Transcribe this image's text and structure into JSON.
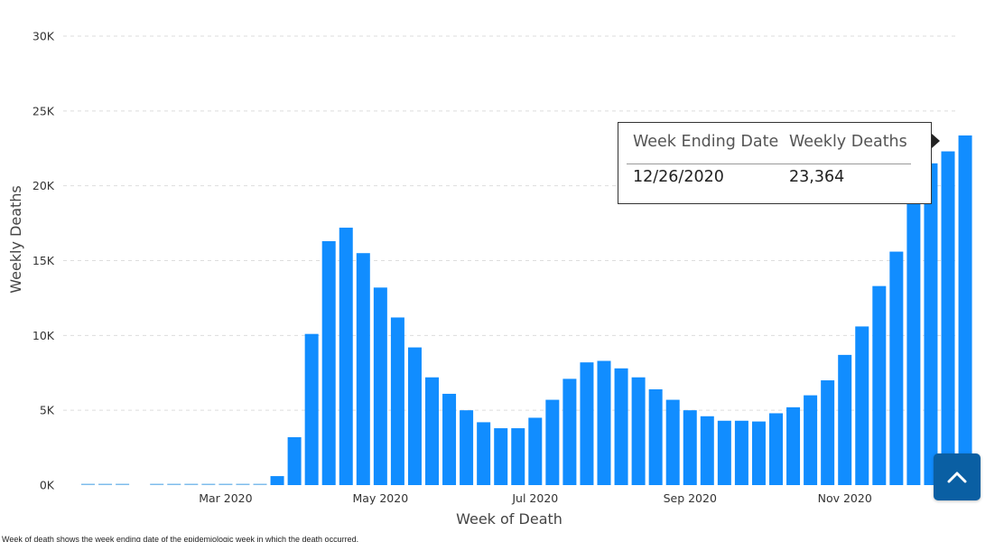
{
  "chart_data": {
    "type": "bar",
    "xlabel": "Week of Death",
    "ylabel": "Weekly Deaths",
    "ylim": [
      0,
      30000
    ],
    "yticks": [
      "0K",
      "5K",
      "10K",
      "15K",
      "20K",
      "25K",
      "30K"
    ],
    "ytick_values": [
      0,
      5000,
      10000,
      15000,
      20000,
      25000,
      30000
    ],
    "xtick_labels": [
      {
        "label": "Mar 2020",
        "date": "2020-02-29"
      },
      {
        "label": "May 2020",
        "date": "2020-05-02"
      },
      {
        "label": "Jul 2020",
        "date": "2020-07-04"
      },
      {
        "label": "Sep 2020",
        "date": "2020-09-05"
      },
      {
        "label": "Nov 2020",
        "date": "2020-11-07"
      }
    ],
    "grid": true,
    "bar_color": "#118dff",
    "x": [
      "2020-01-04",
      "2020-01-11",
      "2020-01-18",
      "2020-01-25",
      "2020-02-01",
      "2020-02-08",
      "2020-02-15",
      "2020-02-22",
      "2020-02-29",
      "2020-03-07",
      "2020-03-14",
      "2020-03-21",
      "2020-03-28",
      "2020-04-04",
      "2020-04-11",
      "2020-04-18",
      "2020-04-25",
      "2020-05-02",
      "2020-05-09",
      "2020-05-16",
      "2020-05-23",
      "2020-05-30",
      "2020-06-06",
      "2020-06-13",
      "2020-06-20",
      "2020-06-27",
      "2020-07-04",
      "2020-07-11",
      "2020-07-18",
      "2020-07-25",
      "2020-08-01",
      "2020-08-08",
      "2020-08-15",
      "2020-08-22",
      "2020-08-29",
      "2020-09-05",
      "2020-09-12",
      "2020-09-19",
      "2020-09-26",
      "2020-10-03",
      "2020-10-10",
      "2020-10-17",
      "2020-10-24",
      "2020-10-31",
      "2020-11-07",
      "2020-11-14",
      "2020-11-21",
      "2020-11-28",
      "2020-12-05",
      "2020-12-12",
      "2020-12-19",
      "2020-12-26"
    ],
    "values": [
      20,
      20,
      20,
      0,
      20,
      20,
      20,
      20,
      20,
      20,
      20,
      600,
      3200,
      10100,
      16300,
      17200,
      15500,
      13200,
      11200,
      9200,
      7200,
      6100,
      5000,
      4200,
      3800,
      3800,
      4500,
      5700,
      7100,
      8200,
      8300,
      7800,
      7200,
      6400,
      5700,
      5000,
      4600,
      4300,
      4300,
      4250,
      4800,
      5200,
      6000,
      7000,
      8700,
      10600,
      13300,
      15600,
      19000,
      21500,
      22300,
      23364
    ]
  },
  "tooltip": {
    "header_date": "Week Ending Date",
    "header_deaths": "Weekly Deaths",
    "value_date": "12/26/2020",
    "value_deaths": "23,364"
  },
  "footnote": "Week of death shows the week ending date of the epidemiologic week in which the death occurred.",
  "scroll_top": {
    "icon": "chevron-up-icon",
    "color": "#0a5fa3"
  }
}
